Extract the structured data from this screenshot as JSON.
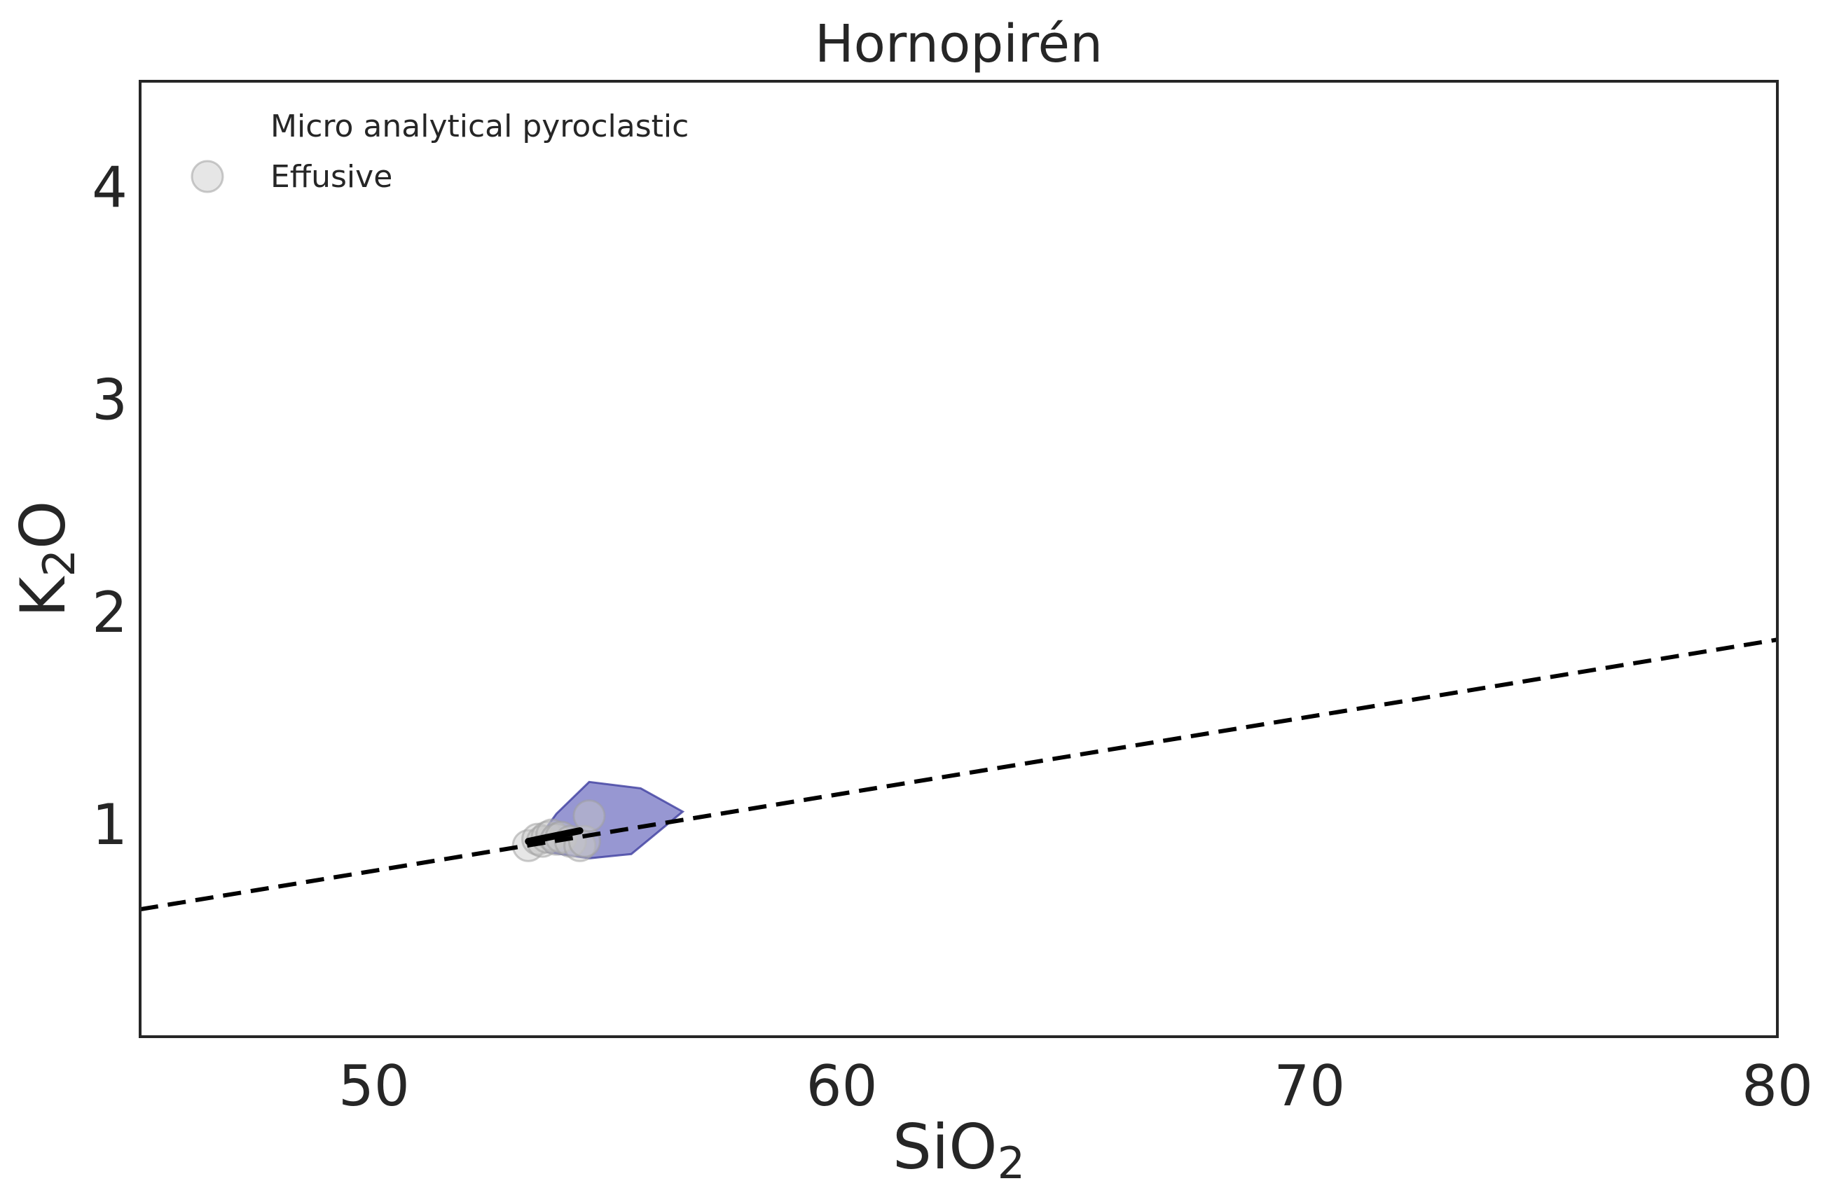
{
  "chart_data": {
    "type": "scatter",
    "title": "Hornopirén",
    "xlabel": {
      "base": "SiO",
      "sub": "2"
    },
    "ylabel": {
      "base": "K",
      "sub": "2",
      "tail": "O"
    },
    "xlim": [
      45,
      80
    ],
    "ylim": [
      0,
      4.5
    ],
    "xticks": [
      50,
      60,
      70,
      80
    ],
    "yticks": [
      1,
      2,
      3,
      4
    ],
    "grid": false,
    "legend_position": "top-left",
    "legend": [
      {
        "label": "Micro analytical pyroclastic",
        "marker": "polygon"
      },
      {
        "label": "Effusive",
        "marker": "circle"
      }
    ],
    "colors": {
      "polygon_fill": "#6b6bbf",
      "polygon_stroke": "#3f3fa0",
      "marker_fill": "#c8c8c8",
      "marker_stroke": "#a0a0a0",
      "axis": "#262626",
      "reference_line": "#000000"
    },
    "reference_line": {
      "style": "dashed",
      "points": [
        [
          45,
          0.6
        ],
        [
          80,
          1.87
        ]
      ]
    },
    "series": [
      {
        "name": "Micro analytical pyroclastic",
        "kind": "hull",
        "points": [
          [
            53.5,
            0.93
          ],
          [
            53.9,
            1.05
          ],
          [
            54.6,
            1.2
          ],
          [
            55.7,
            1.17
          ],
          [
            56.6,
            1.06
          ],
          [
            55.5,
            0.86
          ],
          [
            54.6,
            0.84
          ],
          [
            53.7,
            0.87
          ]
        ]
      },
      {
        "name": "Effusive",
        "kind": "scatter",
        "points": [
          [
            53.3,
            0.9
          ],
          [
            53.5,
            0.93
          ],
          [
            53.6,
            0.92
          ],
          [
            53.7,
            0.94
          ],
          [
            53.8,
            0.95
          ],
          [
            53.9,
            0.93
          ],
          [
            54.0,
            0.94
          ],
          [
            54.2,
            0.92
          ],
          [
            54.4,
            0.9
          ],
          [
            54.5,
            0.92
          ],
          [
            54.6,
            1.04
          ]
        ]
      }
    ]
  }
}
